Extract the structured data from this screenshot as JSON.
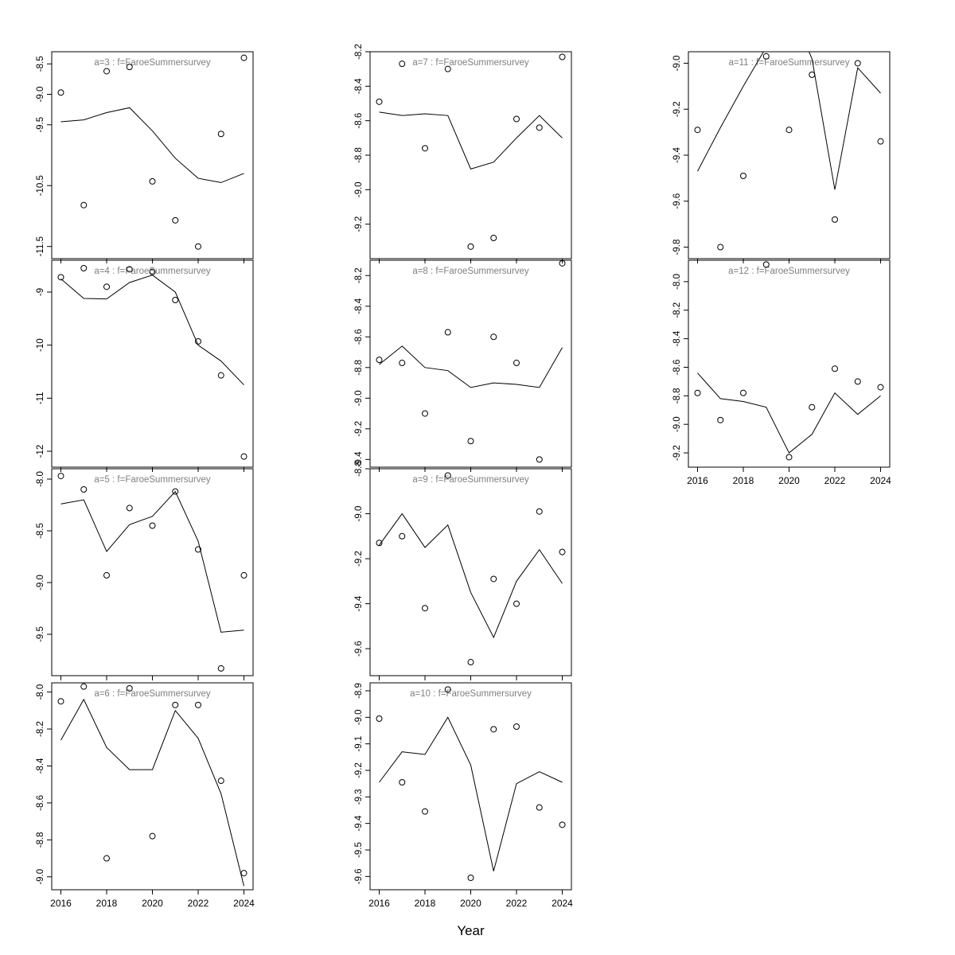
{
  "figure": {
    "xlabel": "Year",
    "accent_colors": {
      "title_gray": "#7f7f7f",
      "axis_black": "#000000",
      "background": "#ffffff"
    }
  },
  "chart_data": {
    "type": "scatter",
    "x": [
      2016,
      2017,
      2018,
      2019,
      2020,
      2021,
      2022,
      2023,
      2024
    ],
    "xticks": [
      "2016",
      "2018",
      "2020",
      "2022",
      "2024"
    ],
    "xlabel": "Year",
    "legend": "none",
    "panels": [
      {
        "id": "a3",
        "title": "a=3  :  f=FaroeSummersurvey",
        "col": 0,
        "row": 0,
        "ylim": [
          -11.7,
          -8.3
        ],
        "yticks": [
          "-8.5",
          "-9.0",
          "-9.5",
          "-10.5",
          "-11.5"
        ],
        "show_x_labels": false,
        "observed": [
          -8.97,
          -10.82,
          -8.62,
          -8.55,
          -10.43,
          -11.07,
          -11.5,
          -9.65,
          -8.4
        ],
        "fitted": [
          -9.45,
          -9.42,
          -9.3,
          -9.22,
          -9.6,
          -10.05,
          -10.38,
          -10.45,
          -10.3
        ]
      },
      {
        "id": "a4",
        "title": "a=4  :  f=FaroeSummersurvey",
        "col": 0,
        "row": 1,
        "ylim": [
          -12.3,
          -8.4
        ],
        "yticks": [
          "-9",
          "-10",
          "-11",
          "-12"
        ],
        "show_x_labels": false,
        "observed": [
          -8.72,
          -8.55,
          -8.9,
          -8.57,
          -8.62,
          -9.15,
          -9.93,
          -10.57,
          -12.1
        ],
        "fitted": [
          -8.75,
          -9.12,
          -9.13,
          -8.82,
          -8.68,
          -9.0,
          -10.0,
          -10.3,
          -10.75
        ]
      },
      {
        "id": "a5",
        "title": "a=5  :  f=FaroeSummersurvey",
        "col": 0,
        "row": 2,
        "ylim": [
          -9.9,
          -7.9
        ],
        "yticks": [
          "-8.0",
          "-8.5",
          "-9.0",
          "-9.5"
        ],
        "show_x_labels": false,
        "observed": [
          -7.97,
          -8.1,
          -8.93,
          -8.28,
          -8.45,
          -8.12,
          -8.68,
          -9.83,
          -8.93
        ],
        "fitted": [
          -8.24,
          -8.2,
          -8.7,
          -8.44,
          -8.36,
          -8.12,
          -8.6,
          -9.48,
          -9.46
        ]
      },
      {
        "id": "a6",
        "title": "a=6  :  f=FaroeSummersurvey",
        "col": 0,
        "row": 3,
        "ylim": [
          -9.07,
          -7.95
        ],
        "yticks": [
          "-8.0",
          "-8.2",
          "-8.4",
          "-8.6",
          "-8.8",
          "-9.0"
        ],
        "show_x_labels": true,
        "observed": [
          -8.05,
          -7.97,
          -8.9,
          -7.98,
          -8.78,
          -8.07,
          -8.07,
          -8.48,
          -8.98
        ],
        "fitted": [
          -8.26,
          -8.04,
          -8.3,
          -8.42,
          -8.42,
          -8.1,
          -8.25,
          -8.55,
          -9.05
        ]
      },
      {
        "id": "a7",
        "title": "a=7  :  f=FaroeSummersurvey",
        "col": 1,
        "row": 0,
        "ylim": [
          -9.4,
          -8.2
        ],
        "yticks": [
          "-8.2",
          "-8.4",
          "-8.6",
          "-8.8",
          "-9.0",
          "-9.2"
        ],
        "show_x_labels": false,
        "observed": [
          -8.49,
          -8.27,
          -8.76,
          -8.3,
          -9.33,
          -9.28,
          -8.59,
          -8.64,
          -8.23
        ],
        "fitted": [
          -8.55,
          -8.57,
          -8.56,
          -8.57,
          -8.88,
          -8.84,
          -8.7,
          -8.57,
          -8.7
        ]
      },
      {
        "id": "a8",
        "title": "a=8  :  f=FaroeSummersurvey",
        "col": 1,
        "row": 1,
        "ylim": [
          -9.45,
          -8.1
        ],
        "yticks": [
          "-8.2",
          "-8.4",
          "-8.6",
          "-8.8",
          "-9.0",
          "-9.2",
          "-9.4"
        ],
        "show_x_labels": false,
        "observed": [
          -8.75,
          -8.77,
          -9.1,
          -8.57,
          -9.28,
          -8.6,
          -8.77,
          -9.4,
          -8.12
        ],
        "fitted": [
          -8.78,
          -8.66,
          -8.8,
          -8.82,
          -8.93,
          -8.9,
          -8.91,
          -8.93,
          -8.67
        ]
      },
      {
        "id": "a9",
        "title": "a=9  :  f=FaroeSummersurvey",
        "col": 1,
        "row": 2,
        "ylim": [
          -9.72,
          -8.8
        ],
        "yticks": [
          "-8.8",
          "-9.0",
          "-9.2",
          "-9.4",
          "-9.6"
        ],
        "show_x_labels": false,
        "observed": [
          -9.13,
          -9.1,
          -9.42,
          -8.83,
          -9.66,
          -9.29,
          -9.4,
          -8.99,
          -9.17
        ],
        "fitted": [
          -9.14,
          -9.0,
          -9.15,
          -9.05,
          -9.35,
          -9.55,
          -9.3,
          -9.16,
          -9.31
        ]
      },
      {
        "id": "a10",
        "title": "a=10  :  f=FaroeSummersurvey",
        "col": 1,
        "row": 3,
        "ylim": [
          -9.65,
          -8.87
        ],
        "yticks": [
          "-8.9",
          "-9.0",
          "-9.1",
          "-9.2",
          "-9.3",
          "-9.4",
          "-9.5",
          "-9.6"
        ],
        "show_x_labels": true,
        "observed": [
          -9.005,
          -9.245,
          -9.355,
          -8.895,
          -9.605,
          -9.045,
          -9.035,
          -9.34,
          -9.405
        ],
        "fitted": [
          -9.245,
          -9.13,
          -9.14,
          -9.0,
          -9.18,
          -9.58,
          -9.25,
          -9.205,
          -9.245
        ]
      },
      {
        "id": "a11",
        "title": "a=11  :  f=FaroeSummersurvey",
        "col": 2,
        "row": 0,
        "ylim": [
          -9.85,
          -8.95
        ],
        "yticks": [
          "-9.0",
          "-9.2",
          "-9.4",
          "-9.6",
          "-9.8"
        ],
        "show_x_labels": false,
        "observed": [
          -9.29,
          -9.8,
          -9.49,
          -8.97,
          -9.29,
          -9.05,
          -9.68,
          -9.0,
          -9.34
        ],
        "fitted": [
          -9.47,
          -9.28,
          -9.1,
          -8.93,
          -8.75,
          -8.98,
          -9.55,
          -9.02,
          -9.13
        ]
      },
      {
        "id": "a12",
        "title": "a=12  :  f=FaroeSummersurvey",
        "col": 2,
        "row": 1,
        "ylim": [
          -9.3,
          -7.85
        ],
        "yticks": [
          "-8.0",
          "-8.2",
          "-8.4",
          "-8.6",
          "-8.8",
          "-9.0",
          "-9.2"
        ],
        "show_x_labels": true,
        "observed": [
          -8.78,
          -8.97,
          -8.78,
          -7.88,
          -9.23,
          -8.88,
          -8.61,
          -8.7,
          -8.74
        ],
        "fitted": [
          -8.64,
          -8.82,
          -8.84,
          -8.88,
          -9.2,
          -9.07,
          -8.78,
          -8.93,
          -8.8
        ]
      }
    ]
  }
}
